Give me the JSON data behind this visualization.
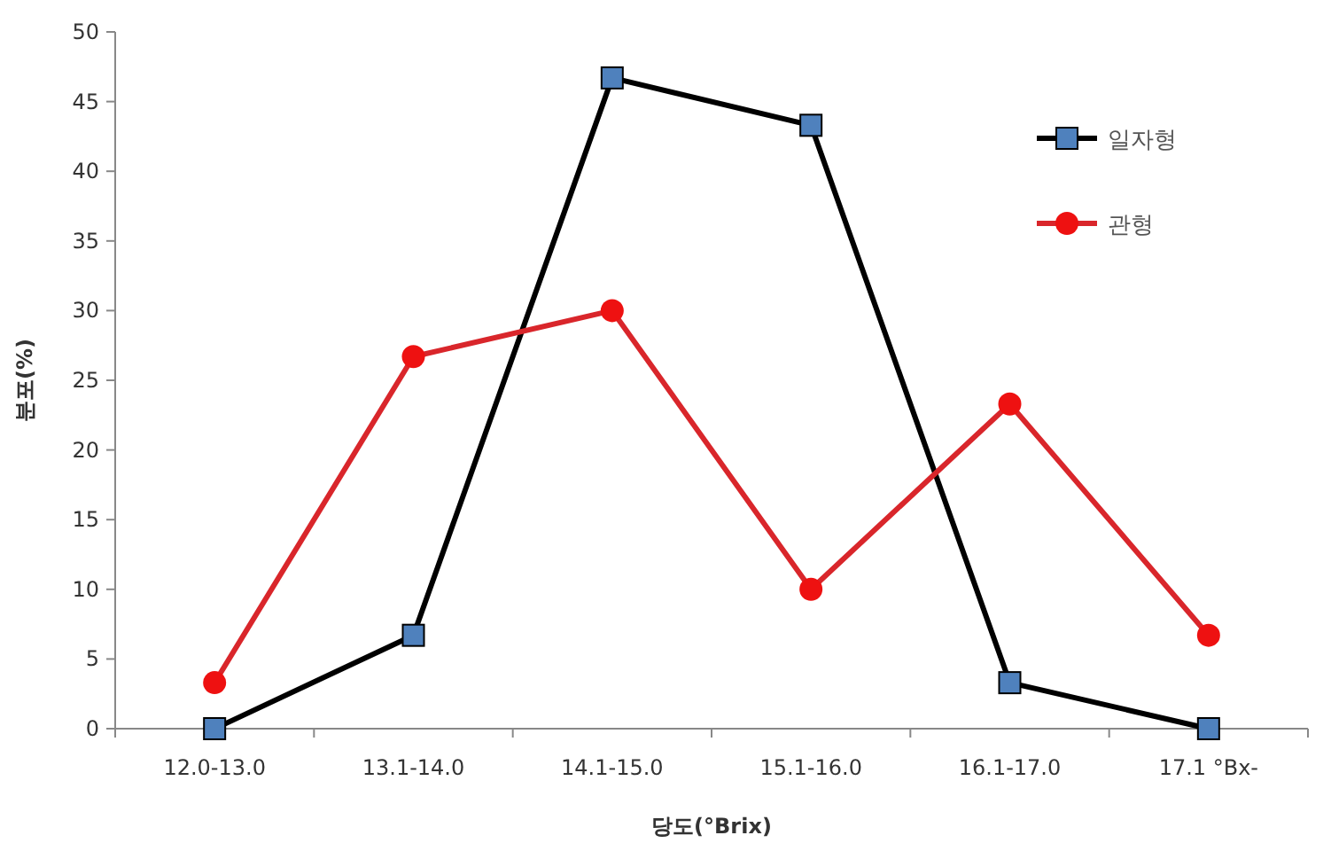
{
  "chart_data": {
    "type": "line",
    "xlabel": "당도(°Brix)",
    "ylabel": "분포(%)",
    "categories": [
      "12.0-13.0",
      "13.1-14.0",
      "14.1-15.0",
      "15.1-16.0",
      "16.1-17.0",
      "17.1 °Bx-"
    ],
    "series": [
      {
        "name": "일자형",
        "color": "#000000",
        "colors": [
          "#4f81bd",
          "#4f81bd",
          "#4f81bd",
          "#4f81bd",
          "#4f81bd",
          "#4f81bd"
        ],
        "marker": "square",
        "values": [
          0,
          6.7,
          46.7,
          43.3,
          3.3,
          0
        ]
      },
      {
        "name": "관형",
        "color": "#d9262b",
        "colors": [
          "#ee1111",
          "#ee1111",
          "#ee1111",
          "#ee1111",
          "#ee1111",
          "#ee1111"
        ],
        "marker": "circle",
        "values": [
          3.3,
          26.7,
          30,
          10,
          23.3,
          6.7
        ]
      }
    ],
    "ylim": [
      0,
      50
    ],
    "yticks": [
      0,
      5,
      10,
      15,
      20,
      25,
      30,
      35,
      40,
      45,
      50
    ],
    "grid": false,
    "legend": "top right",
    "line_style": "solid"
  }
}
